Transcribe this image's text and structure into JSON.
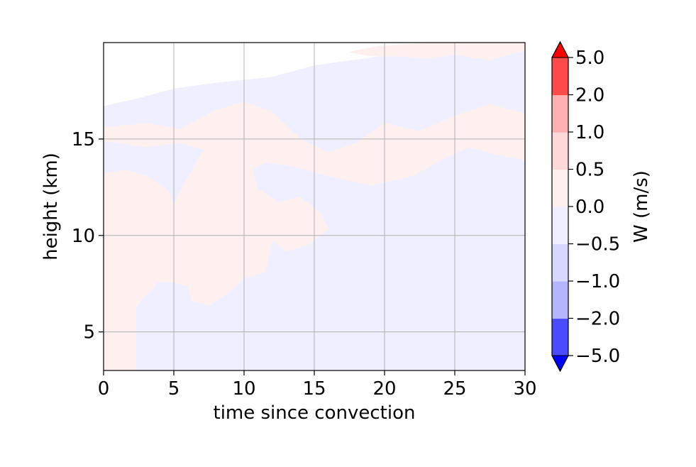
{
  "chart_data": {
    "type": "heatmap",
    "title": "",
    "xlabel": "time since convection",
    "ylabel": "height (km)",
    "xlim": [
      0,
      30
    ],
    "ylim": [
      3,
      20
    ],
    "xticks": [
      0,
      5,
      10,
      15,
      20,
      25,
      30
    ],
    "yticks": [
      5,
      10,
      15
    ],
    "grid": true,
    "colorbar": {
      "label": "W (m/s)",
      "levels": [
        -5.0,
        -2.0,
        -1.0,
        -0.5,
        0.0,
        0.5,
        1.0,
        2.0,
        5.0
      ],
      "tick_labels": [
        "−5.0",
        "−2.0",
        "−1.0",
        "−0.5",
        "0.0",
        "0.5",
        "1.0",
        "2.0",
        "5.0"
      ],
      "colors": [
        "#4a4aff",
        "#b4b4ff",
        "#d8d8ff",
        "#efefff",
        "#fff0f0",
        "#ffd9d9",
        "#ffb0b0",
        "#ff4a4a"
      ],
      "extend_colors": {
        "min": "#0000ff",
        "max": "#ff0000"
      },
      "extend": "both"
    },
    "regions": [
      {
        "name": "negative-weak",
        "level_range": [
          -0.5,
          0.0
        ],
        "color": "#efefff",
        "points": [
          [
            2.3,
            3
          ],
          [
            30,
            3
          ],
          [
            30,
            19.6
          ],
          [
            25,
            19.8
          ],
          [
            20,
            19.3
          ],
          [
            15,
            18.8
          ],
          [
            12,
            18.2
          ],
          [
            8,
            17.9
          ],
          [
            5,
            17.6
          ],
          [
            2.5,
            17.1
          ],
          [
            0,
            16.7
          ],
          [
            0,
            13.2
          ],
          [
            1.5,
            13.4
          ],
          [
            3,
            13.1
          ],
          [
            4.5,
            12.4
          ],
          [
            5,
            11.6
          ],
          [
            6,
            13
          ],
          [
            7,
            14.3
          ],
          [
            9,
            15
          ],
          [
            10.2,
            14.2
          ],
          [
            11,
            12.4
          ],
          [
            12.5,
            11.7
          ],
          [
            14,
            12
          ],
          [
            15.5,
            11.1
          ],
          [
            16,
            10.3
          ],
          [
            14.5,
            9.5
          ],
          [
            13,
            9.2
          ],
          [
            12,
            9.7
          ],
          [
            11.5,
            8.1
          ],
          [
            10,
            7.8
          ],
          [
            9,
            7.1
          ],
          [
            7.6,
            6.4
          ],
          [
            6.3,
            6.6
          ],
          [
            6,
            7.4
          ],
          [
            4.8,
            7.6
          ],
          [
            3.8,
            7.6
          ],
          [
            3.5,
            7.2
          ],
          [
            2.8,
            6.8
          ],
          [
            2.3,
            6.2
          ]
        ]
      },
      {
        "name": "positive-weak-left",
        "level_range": [
          0.0,
          0.5
        ],
        "color": "#fff0f0",
        "points": [
          [
            0,
            3
          ],
          [
            2.3,
            3
          ],
          [
            2.3,
            6.2
          ],
          [
            2.8,
            6.8
          ],
          [
            3.5,
            7.2
          ],
          [
            3.8,
            7.6
          ],
          [
            4.8,
            7.6
          ],
          [
            6,
            7.4
          ],
          [
            6.3,
            6.6
          ],
          [
            7.6,
            6.4
          ],
          [
            9,
            7.1
          ],
          [
            10,
            7.8
          ],
          [
            11.5,
            8.1
          ],
          [
            12,
            9.7
          ],
          [
            13,
            9.2
          ],
          [
            14.5,
            9.5
          ],
          [
            16,
            10.3
          ],
          [
            15.5,
            11.1
          ],
          [
            14,
            12
          ],
          [
            12.5,
            11.7
          ],
          [
            11,
            12.4
          ],
          [
            10.2,
            14.2
          ],
          [
            9,
            15
          ],
          [
            7,
            14.3
          ],
          [
            6,
            13
          ],
          [
            5,
            11.6
          ],
          [
            4.5,
            12.4
          ],
          [
            3,
            13.1
          ],
          [
            1.5,
            13.4
          ],
          [
            0,
            13.2
          ]
        ]
      },
      {
        "name": "positive-weak-mid",
        "level_range": [
          0.0,
          0.5
        ],
        "color": "#fff0f0",
        "points": [
          [
            0,
            15.6
          ],
          [
            3,
            15.8
          ],
          [
            5.5,
            15.5
          ],
          [
            8,
            16.5
          ],
          [
            10,
            16.9
          ],
          [
            12,
            16.4
          ],
          [
            14,
            15
          ],
          [
            16,
            14.3
          ],
          [
            18,
            14.8
          ],
          [
            20,
            15.8
          ],
          [
            22.5,
            15.4
          ],
          [
            25,
            16.2
          ],
          [
            27.5,
            16.8
          ],
          [
            30,
            16.3
          ],
          [
            30,
            13.9
          ],
          [
            28,
            14.2
          ],
          [
            26,
            14.6
          ],
          [
            24,
            13.9
          ],
          [
            22,
            13.1
          ],
          [
            19,
            12.6
          ],
          [
            16,
            13.1
          ],
          [
            13.5,
            13.6
          ],
          [
            11.5,
            13.8
          ],
          [
            10,
            13.2
          ],
          [
            8.5,
            13.8
          ],
          [
            7,
            14.5
          ],
          [
            5.5,
            14.8
          ],
          [
            3,
            14.6
          ],
          [
            0,
            14.9
          ]
        ]
      },
      {
        "name": "positive-weak-top",
        "level_range": [
          0.0,
          0.5
        ],
        "color": "#fff0f0",
        "points": [
          [
            17.5,
            19.5
          ],
          [
            19.5,
            19.8
          ],
          [
            21.5,
            19.9
          ],
          [
            24,
            20
          ],
          [
            30,
            20
          ],
          [
            30,
            19.6
          ],
          [
            27.5,
            19.1
          ],
          [
            25,
            19.4
          ],
          [
            23,
            19.2
          ],
          [
            21,
            19.3
          ],
          [
            19,
            19.3
          ]
        ]
      }
    ]
  }
}
